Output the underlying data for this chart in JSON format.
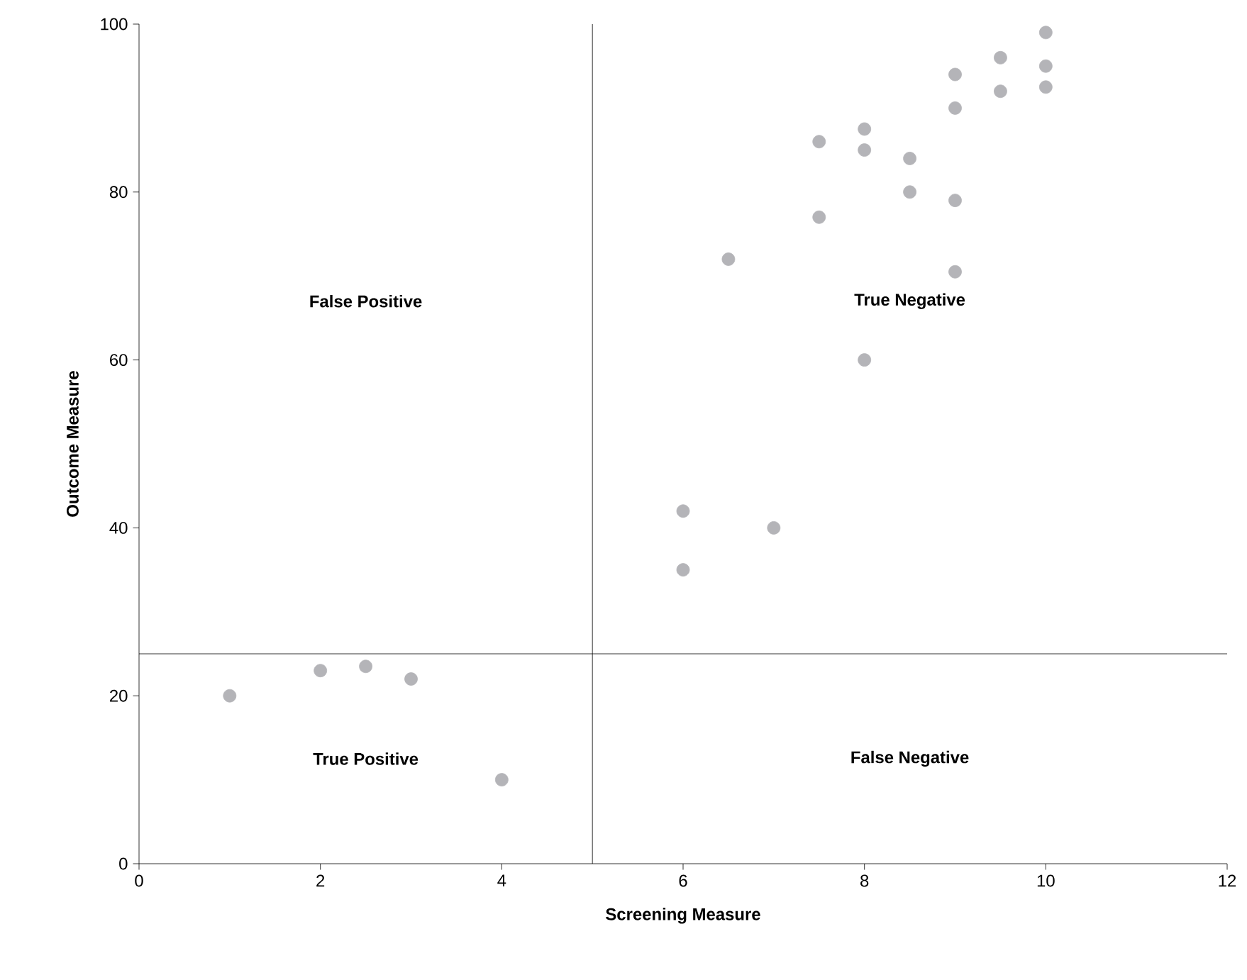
{
  "chart_data": {
    "type": "scatter",
    "xlabel": "Screening Measure",
    "ylabel": "Outcome Measure",
    "xlim": [
      0,
      12
    ],
    "ylim": [
      0,
      100
    ],
    "xticks": [
      0,
      2,
      4,
      6,
      8,
      10,
      12
    ],
    "yticks": [
      0,
      20,
      40,
      60,
      80,
      100
    ],
    "grid": false,
    "series": [
      {
        "color": "#b4b4b8",
        "x": [
          1,
          2,
          2.5,
          3,
          4,
          6,
          6,
          7,
          8,
          6.5,
          7.5,
          7.5,
          8,
          8,
          8.5,
          8.5,
          9,
          9,
          9,
          9,
          9.5,
          9.5,
          10,
          10,
          10
        ],
        "values": [
          20,
          23,
          23.5,
          22,
          10,
          42,
          35,
          40,
          60,
          72,
          77,
          86,
          85,
          87.5,
          84,
          80,
          79,
          70.5,
          90,
          94,
          92,
          96,
          99,
          95,
          92.5
        ]
      }
    ],
    "ref_lines": [
      {
        "axis": "x",
        "value": 5,
        "color": "#000000"
      },
      {
        "axis": "y",
        "value": 25,
        "color": "#000000"
      }
    ],
    "annotations": [
      "False Positive",
      "True Negative",
      "True Positive",
      "False Negative"
    ]
  }
}
